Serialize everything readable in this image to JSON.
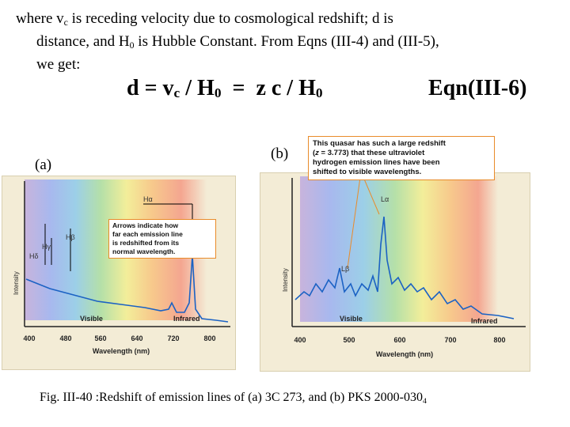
{
  "intro": {
    "line1_a": "where v",
    "line1_sub": "c",
    "line1_b": " is receding velocity due to cosmological redshift; d is",
    "line2_a": "distance, and H",
    "line2_sub": "0",
    "line2_b": " is Hubble Constant.  From Eqns (III-4) and (III-5),",
    "line3": "we get:"
  },
  "equation": {
    "d": "d = v",
    "vsub": "c",
    "div1": " / H",
    "h1sub": "0",
    "mid": "  =  z c / H",
    "h2sub": "0",
    "label": "Eqn(III-6)"
  },
  "panel_a": {
    "label": "(a)",
    "lines": {
      "alpha": "Hα",
      "beta": "Hβ",
      "gamma": "Hγ",
      "delta": "Hδ"
    },
    "callout": [
      "Arrows indicate how",
      "far each emission line",
      "is redshifted from its",
      "normal wavelength."
    ],
    "ylabel": "Intensity",
    "xlabel": "Wavelength (nm)",
    "ticks": [
      "400",
      "480",
      "560",
      "640",
      "720",
      "800"
    ],
    "visible": "Visible",
    "infrared": "Infrared"
  },
  "panel_b": {
    "label": "(b)",
    "lines": {
      "alpha": "Lα",
      "beta": "Lβ"
    },
    "callout_l1": "This quasar has such a large redshift",
    "callout_l2_a": "(",
    "callout_l2_z": "z",
    "callout_l2_b": " = 3.773) that these ultraviolet",
    "callout_l3": "hydrogen emission lines have been",
    "callout_l4": "shifted to visible wavelengths.",
    "ylabel": "Intensity",
    "xlabel": "Wavelength (nm)",
    "ticks": [
      "400",
      "500",
      "600",
      "700",
      "800"
    ],
    "visible": "Visible",
    "infrared": "Infrared"
  },
  "caption": {
    "text": "Fig. III-40 :Redshift of emission lines of (a) 3C 273, and (b) PKS 2000-030",
    "sub": "4"
  }
}
